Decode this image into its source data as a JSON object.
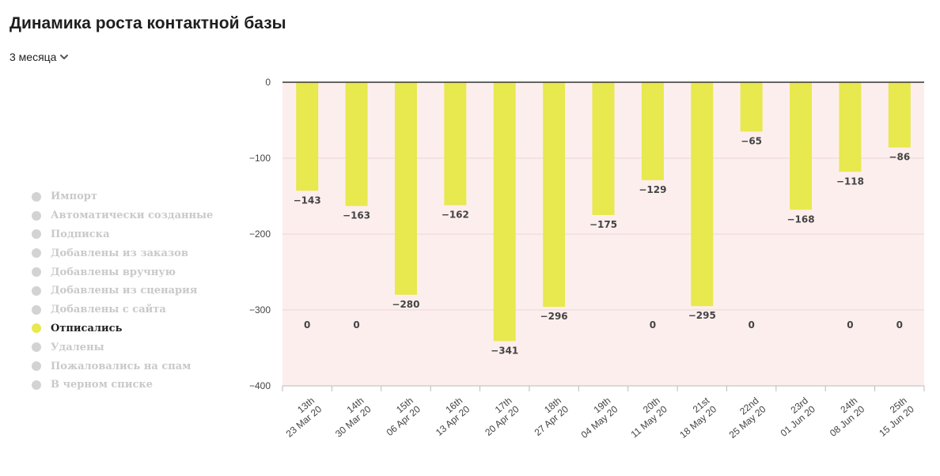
{
  "header": {
    "title": "Динамика роста контактной базы",
    "period_label": "3 месяца"
  },
  "legend": {
    "items": [
      {
        "label": "Импорт",
        "active": false
      },
      {
        "label": "Автоматически созданные",
        "active": false
      },
      {
        "label": "Подписка",
        "active": false
      },
      {
        "label": "Добавлены из заказов",
        "active": false
      },
      {
        "label": "Добавлены вручную",
        "active": false
      },
      {
        "label": "Добавлены из сценария",
        "active": false
      },
      {
        "label": "Добавлены с сайта",
        "active": false
      },
      {
        "label": "Отписались",
        "active": true
      },
      {
        "label": "Удалены",
        "active": false
      },
      {
        "label": "Пожаловались на спам",
        "active": false
      },
      {
        "label": "В черном списке",
        "active": false
      }
    ]
  },
  "colors": {
    "bar": "#e8e84f",
    "plot_bg": "#fdeeee",
    "legend_inactive": "#d3d3d3"
  },
  "chart_data": {
    "type": "bar",
    "title": "",
    "xlabel": "",
    "ylabel": "",
    "ylim": [
      -400,
      0
    ],
    "yticks": [
      0,
      -100,
      -200,
      -300,
      -400
    ],
    "yticks_text": [
      "0",
      "−100",
      "−200",
      "−300",
      "−400"
    ],
    "grid": true,
    "categories": [
      [
        "13th",
        "23 Mar 20"
      ],
      [
        "14th",
        "30 Mar 20"
      ],
      [
        "15th",
        "06 Apr 20"
      ],
      [
        "16th",
        "13 Apr 20"
      ],
      [
        "17th",
        "20 Apr 20"
      ],
      [
        "18th",
        "27 Apr 20"
      ],
      [
        "19th",
        "04 May 20"
      ],
      [
        "20th",
        "11 May 20"
      ],
      [
        "21st",
        "18 May 20"
      ],
      [
        "22nd",
        "25 May 20"
      ],
      [
        "23rd",
        "01 Jun 20"
      ],
      [
        "24th",
        "08 Jun 20"
      ],
      [
        "25th",
        "15 Jun 20"
      ]
    ],
    "series": [
      {
        "values": [
          -143,
          -163,
          -280,
          -162,
          -341,
          -296,
          -175,
          -129,
          -295,
          -65,
          -168,
          -118,
          -86
        ],
        "labels": [
          "−143",
          "−163",
          "−280",
          "−162",
          "−341",
          "−296",
          "−175",
          "−129",
          "−295",
          "−65",
          "−168",
          "−118",
          "−86"
        ]
      },
      {
        "values": [
          0,
          0,
          null,
          null,
          null,
          null,
          null,
          0,
          null,
          0,
          null,
          0,
          0
        ],
        "labels": [
          "0",
          "0",
          "",
          "",
          "",
          "",
          "",
          "0",
          "",
          "0",
          "",
          "0",
          "0"
        ]
      }
    ]
  }
}
